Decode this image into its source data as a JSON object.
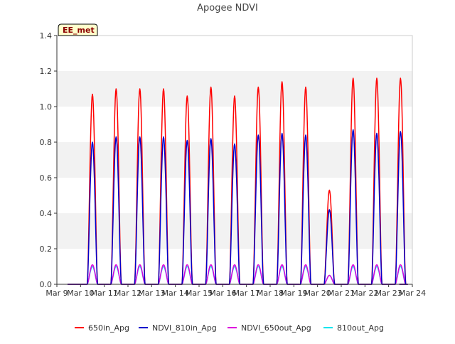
{
  "chart_data": {
    "type": "line",
    "title": "Apogee NDVI",
    "xlabel": "",
    "ylabel": "",
    "ylim": [
      0.0,
      1.4
    ],
    "xlim": [
      "Mar 9",
      "Mar 24"
    ],
    "y_ticks": [
      "0.0",
      "0.2",
      "0.4",
      "0.6",
      "0.8",
      "1.0",
      "1.2",
      "1.4"
    ],
    "x_ticks": [
      "Mar 9",
      "Mar 10",
      "Mar 11",
      "Mar 12",
      "Mar 13",
      "Mar 14",
      "Mar 15",
      "Mar 16",
      "Mar 17",
      "Mar 18",
      "Mar 19",
      "Mar 20",
      "Mar 21",
      "Mar 22",
      "Mar 23",
      "Mar 24"
    ],
    "grid": "horizontal bands",
    "legend_position": "bottom",
    "annotation": "EE_met",
    "daily_x": [
      "Mar 10",
      "Mar 11",
      "Mar 12",
      "Mar 13",
      "Mar 14",
      "Mar 15",
      "Mar 16",
      "Mar 17",
      "Mar 18",
      "Mar 19",
      "Mar 20",
      "Mar 21",
      "Mar 22",
      "Mar 23"
    ],
    "series": [
      {
        "name": "650in_Apg",
        "color": "#ff0000",
        "daily_peak": [
          1.07,
          1.1,
          1.1,
          1.1,
          1.06,
          1.11,
          1.06,
          1.11,
          1.14,
          1.11,
          0.53,
          1.16,
          1.16,
          1.16
        ]
      },
      {
        "name": "NDVI_810in_Apg",
        "color": "#0000cc",
        "daily_peak": [
          0.8,
          0.83,
          0.83,
          0.83,
          0.81,
          0.82,
          0.79,
          0.84,
          0.85,
          0.84,
          0.42,
          0.87,
          0.85,
          0.86
        ]
      },
      {
        "name": "NDVI_650out_Apg",
        "color": "#dd00dd",
        "daily_peak": [
          0.11,
          0.11,
          0.11,
          0.11,
          0.11,
          0.11,
          0.11,
          0.11,
          0.11,
          0.11,
          0.05,
          0.11,
          0.11,
          0.11
        ]
      },
      {
        "name": "810out_Apg",
        "color": "#00e5ee",
        "daily_peak": [
          0.1,
          0.1,
          0.1,
          0.1,
          0.1,
          0.1,
          0.1,
          0.1,
          0.1,
          0.1,
          0.05,
          0.1,
          0.1,
          0.1
        ]
      }
    ]
  }
}
